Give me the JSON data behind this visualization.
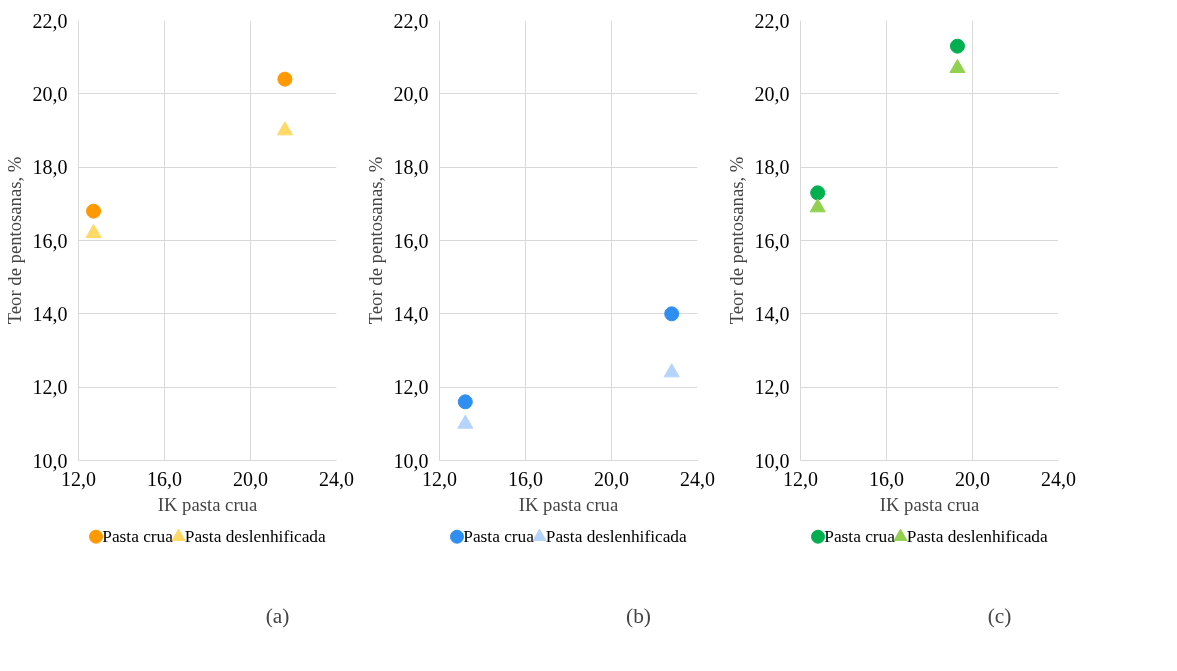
{
  "chart_data": [
    {
      "type": "scatter",
      "xlabel": "IK pasta crua",
      "ylabel": "Teor de pentosanas, %",
      "xlim": [
        12,
        24
      ],
      "xticks": [
        {
          "value": 12,
          "label": "12,0"
        },
        {
          "value": 16,
          "label": "16,0"
        },
        {
          "value": 20,
          "label": "20,0"
        },
        {
          "value": 24,
          "label": "24,0"
        }
      ],
      "ylim": [
        10,
        22
      ],
      "yticks": [
        {
          "value": 10,
          "label": "10,0"
        },
        {
          "value": 12,
          "label": "12,0"
        },
        {
          "value": 14,
          "label": "14,0"
        },
        {
          "value": 16,
          "label": "16,0"
        },
        {
          "value": 18,
          "label": "18,0"
        },
        {
          "value": 20,
          "label": "20,0"
        },
        {
          "value": 22,
          "label": "22,0"
        }
      ],
      "grid": true,
      "legend": "bottom",
      "annotations": [
        "(a)"
      ],
      "series": [
        {
          "name": "Pasta crua",
          "color": "#ff9900",
          "marker": "circle",
          "x": [
            12.7,
            21.6
          ],
          "values": [
            16.8,
            20.4
          ]
        },
        {
          "name": "Pasta deslenhificada",
          "color": "#ffd966",
          "marker": "triangle",
          "x": [
            12.7,
            21.6
          ],
          "values": [
            16.2,
            19.0
          ]
        }
      ]
    },
    {
      "type": "scatter",
      "xlabel": "IK pasta crua",
      "ylabel": "Teor de pentosanas, %",
      "xlim": [
        12,
        24
      ],
      "xticks": [
        {
          "value": 12,
          "label": "12,0"
        },
        {
          "value": 16,
          "label": "16,0"
        },
        {
          "value": 20,
          "label": "20,0"
        },
        {
          "value": 24,
          "label": "24,0"
        }
      ],
      "ylim": [
        10,
        22
      ],
      "yticks": [
        {
          "value": 10,
          "label": "10,0"
        },
        {
          "value": 12,
          "label": "12,0"
        },
        {
          "value": 14,
          "label": "14,0"
        },
        {
          "value": 16,
          "label": "16,0"
        },
        {
          "value": 18,
          "label": "18,0"
        },
        {
          "value": 20,
          "label": "20,0"
        },
        {
          "value": 22,
          "label": "22,0"
        }
      ],
      "grid": true,
      "legend": "bottom",
      "annotations": [
        "(b)"
      ],
      "series": [
        {
          "name": "Pasta crua",
          "color": "#2e8ff0",
          "marker": "circle",
          "x": [
            13.2,
            22.8
          ],
          "values": [
            11.6,
            14.0
          ]
        },
        {
          "name": "Pasta deslenhificada",
          "color": "#b4d4fb",
          "marker": "triangle",
          "x": [
            13.2,
            22.8
          ],
          "values": [
            11.0,
            12.4
          ]
        }
      ]
    },
    {
      "type": "scatter",
      "xlabel": "IK pasta crua",
      "ylabel": "Teor de pentosanas, %",
      "xlim": [
        12,
        24
      ],
      "xticks": [
        {
          "value": 12,
          "label": "12,0"
        },
        {
          "value": 16,
          "label": "16,0"
        },
        {
          "value": 20,
          "label": "20,0"
        },
        {
          "value": 24,
          "label": "24,0"
        }
      ],
      "ylim": [
        10,
        22
      ],
      "yticks": [
        {
          "value": 10,
          "label": "10,0"
        },
        {
          "value": 12,
          "label": "12,0"
        },
        {
          "value": 14,
          "label": "14,0"
        },
        {
          "value": 16,
          "label": "16,0"
        },
        {
          "value": 18,
          "label": "18,0"
        },
        {
          "value": 20,
          "label": "20,0"
        },
        {
          "value": 22,
          "label": "22,0"
        }
      ],
      "grid": true,
      "legend": "bottom",
      "annotations": [
        "(c)"
      ],
      "series": [
        {
          "name": "Pasta crua",
          "color": "#00b050",
          "marker": "circle",
          "x": [
            12.8,
            19.3
          ],
          "values": [
            17.3,
            21.3
          ]
        },
        {
          "name": "Pasta deslenhificada",
          "color": "#92d050",
          "marker": "triangle",
          "x": [
            12.8,
            19.3
          ],
          "values": [
            16.9,
            20.7
          ]
        }
      ]
    }
  ]
}
